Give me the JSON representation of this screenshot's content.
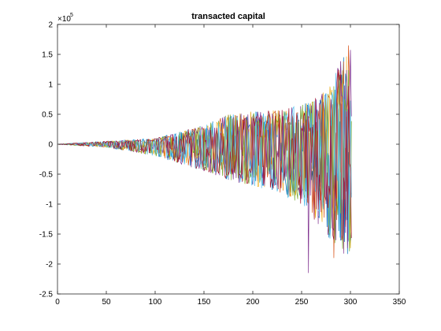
{
  "chart_data": {
    "type": "line",
    "title": "transacted capital",
    "xlabel": "",
    "ylabel": "",
    "xlim": [
      0,
      350
    ],
    "ylim": [
      -2.5,
      2
    ],
    "y_multiplier_base": "×10",
    "y_multiplier_exponent": "5",
    "x_ticks": [
      0,
      50,
      100,
      150,
      200,
      250,
      300,
      350
    ],
    "x_tick_labels": [
      "0",
      "50",
      "100",
      "150",
      "200",
      "250",
      "300",
      "350"
    ],
    "y_ticks": [
      -2.5,
      -2,
      -1.5,
      -1,
      -0.5,
      0,
      0.5,
      1,
      1.5,
      2
    ],
    "y_tick_labels": [
      "-2.5",
      "-2",
      "-1.5",
      "-1",
      "-0.5",
      "0",
      "0.5",
      "1",
      "1.5",
      "2"
    ],
    "grid": false,
    "legend": "none",
    "series_colors": [
      "#0072bd",
      "#d95319",
      "#edb120",
      "#7e2f8e",
      "#77ac30",
      "#4dbeee",
      "#a2142f"
    ],
    "n_series_estimate": 7,
    "n_points": 301,
    "x_range": [
      1,
      301
    ],
    "envelope": {
      "x": [
        0,
        50,
        100,
        150,
        175,
        200,
        225,
        250,
        275,
        290,
        300
      ],
      "upper": [
        0.002,
        0.05,
        0.1,
        0.32,
        0.5,
        0.55,
        0.58,
        0.65,
        0.9,
        1.4,
        1.6
      ],
      "lower": [
        -0.002,
        -0.05,
        -0.2,
        -0.45,
        -0.6,
        -0.7,
        -0.8,
        -1.0,
        -1.5,
        -1.8,
        -1.9
      ]
    },
    "notable_points": [
      {
        "x": 257,
        "y": -2.15,
        "series": 3
      },
      {
        "x": 283,
        "y": -1.9,
        "series": 1
      },
      {
        "x": 298,
        "y": 1.65,
        "series": 1
      }
    ]
  }
}
